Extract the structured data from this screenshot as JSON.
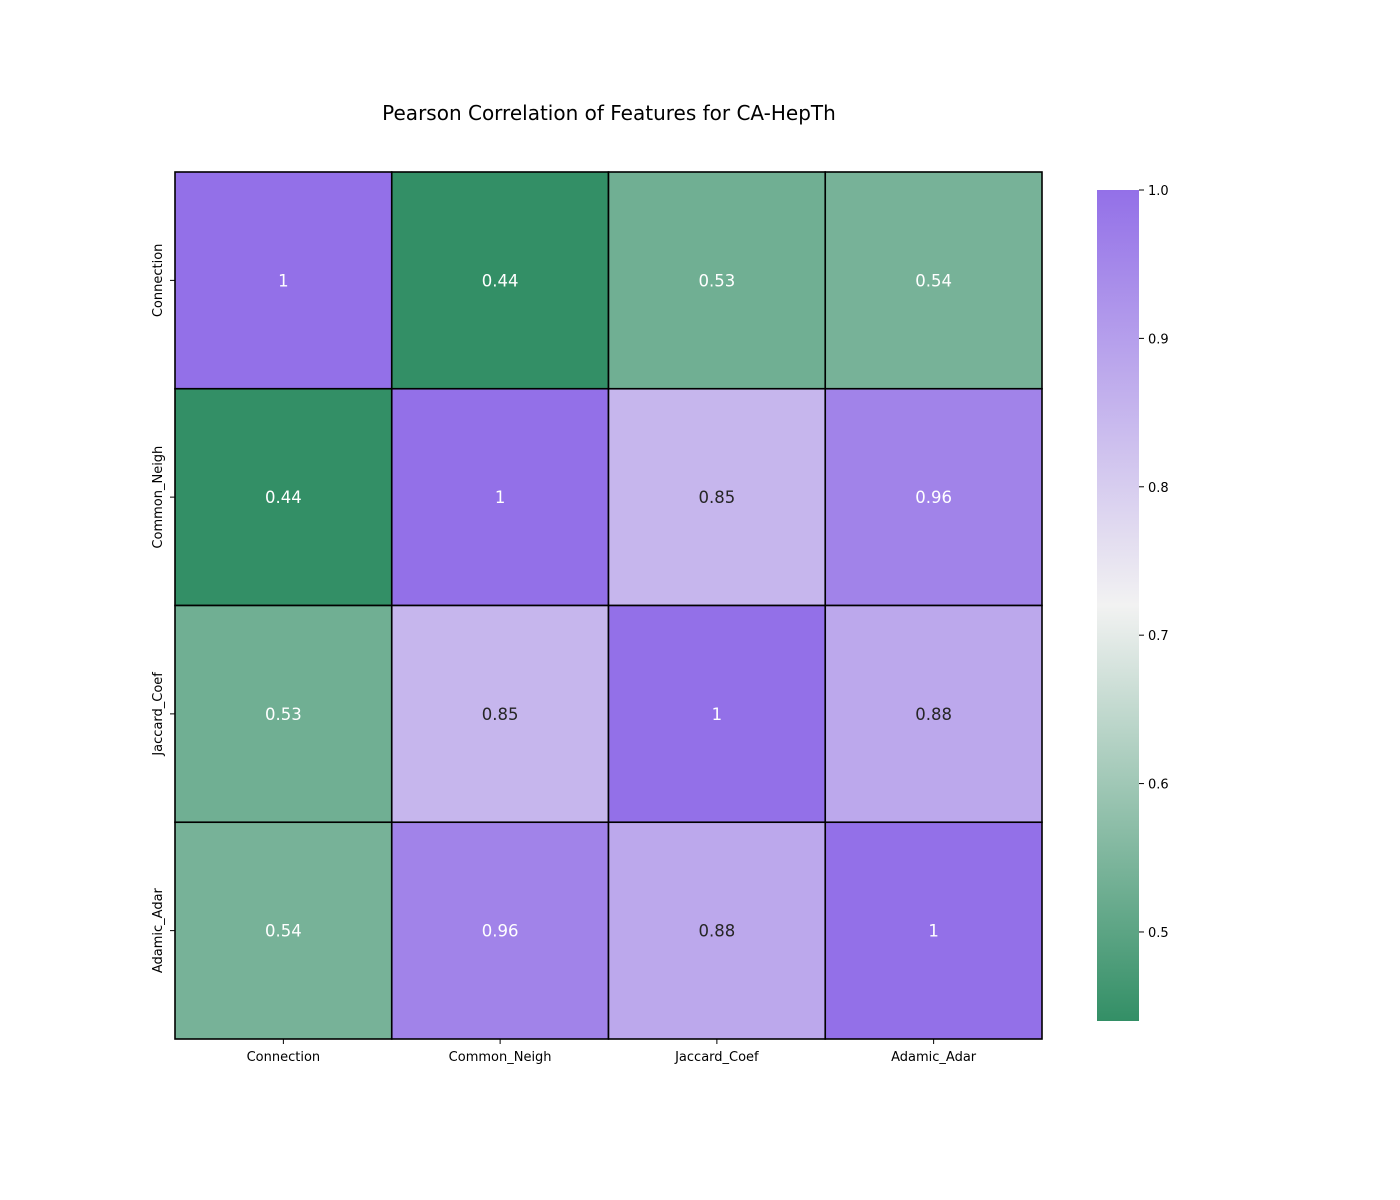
{
  "chart_data": {
    "type": "heatmap",
    "title": "Pearson Correlation of Features for CA-HepTh",
    "x_labels": [
      "Connection",
      "Common_Neigh",
      "Jaccard_Coef",
      "Adamic_Adar"
    ],
    "y_labels": [
      "Connection",
      "Common_Neigh",
      "Jaccard_Coef",
      "Adamic_Adar"
    ],
    "values": [
      [
        1.0,
        0.44,
        0.53,
        0.54
      ],
      [
        0.44,
        1.0,
        0.85,
        0.96
      ],
      [
        0.53,
        0.85,
        1.0,
        0.88
      ],
      [
        0.54,
        0.96,
        0.88,
        1.0
      ]
    ],
    "value_labels": [
      [
        "1",
        "0.44",
        "0.53",
        "0.54"
      ],
      [
        "0.44",
        "1",
        "0.85",
        "0.96"
      ],
      [
        "0.53",
        "0.85",
        "1",
        "0.88"
      ],
      [
        "0.54",
        "0.96",
        "0.88",
        "1"
      ]
    ],
    "colorbar": {
      "range": [
        0.44,
        1.0
      ],
      "ticks": [
        0.5,
        0.6,
        0.7,
        0.8,
        0.9,
        1.0
      ],
      "tick_labels": [
        "0.5",
        "0.6",
        "0.7",
        "0.8",
        "0.9",
        "1.0"
      ],
      "low_color": "#338f66",
      "mid_color": "#f2f2f2",
      "high_color": "#9370e8",
      "center": 0.72
    },
    "cell_border_color": "#000000",
    "grid": false,
    "legend": "colorbar-right"
  }
}
